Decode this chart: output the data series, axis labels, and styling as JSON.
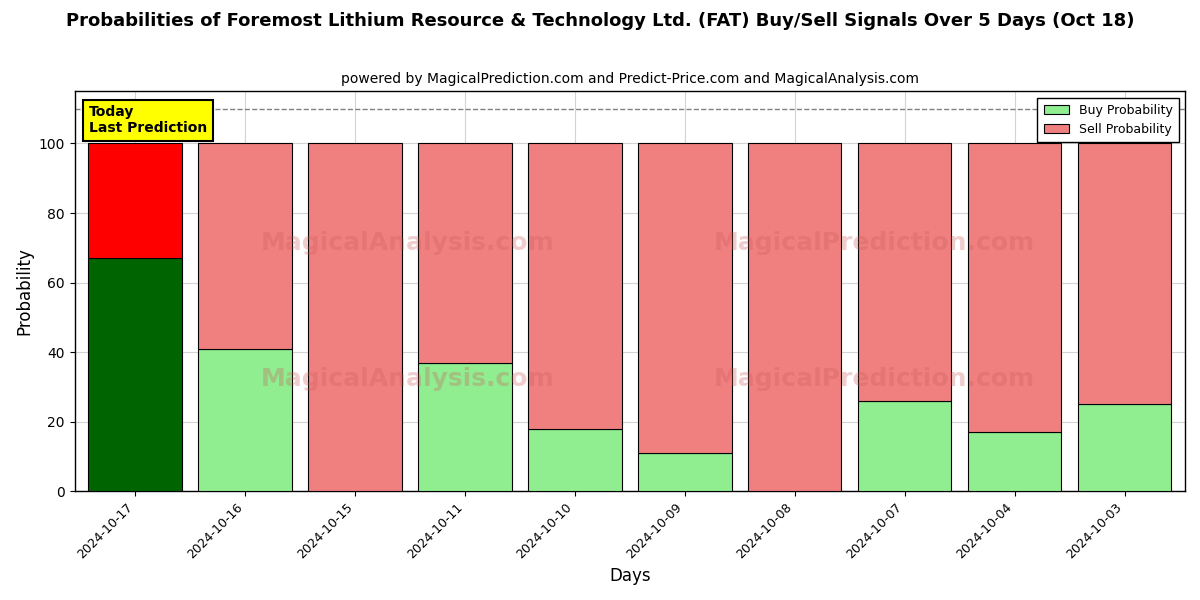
{
  "title": "Probabilities of Foremost Lithium Resource & Technology Ltd. (FAT) Buy/Sell Signals Over 5 Days (Oct 18)",
  "subtitle": "powered by MagicalPrediction.com and Predict-Price.com and MagicalAnalysis.com",
  "xlabel": "Days",
  "ylabel": "Probability",
  "dates": [
    "2024-10-17",
    "2024-10-16",
    "2024-10-15",
    "2024-10-11",
    "2024-10-10",
    "2024-10-09",
    "2024-10-08",
    "2024-10-07",
    "2024-10-04",
    "2024-10-03"
  ],
  "buy_values": [
    67,
    41,
    0,
    37,
    18,
    11,
    0,
    26,
    17,
    25
  ],
  "sell_values": [
    33,
    59,
    100,
    63,
    82,
    89,
    100,
    74,
    83,
    75
  ],
  "today_buy_color": "#006400",
  "today_sell_color": "#FF0000",
  "buy_color": "#90EE90",
  "sell_color": "#F08080",
  "today_label_bg": "#FFFF00",
  "today_label_text": "Today\nLast Prediction",
  "legend_buy": "Buy Probability",
  "legend_sell": "Sell Probability",
  "ylim": [
    0,
    115
  ],
  "yticks": [
    0,
    20,
    40,
    60,
    80,
    100
  ],
  "dashed_line_y": 110,
  "bar_width": 0.85,
  "figsize": [
    12,
    6
  ],
  "dpi": 100,
  "title_fontsize": 13,
  "subtitle_fontsize": 10,
  "axis_label_fontsize": 12
}
